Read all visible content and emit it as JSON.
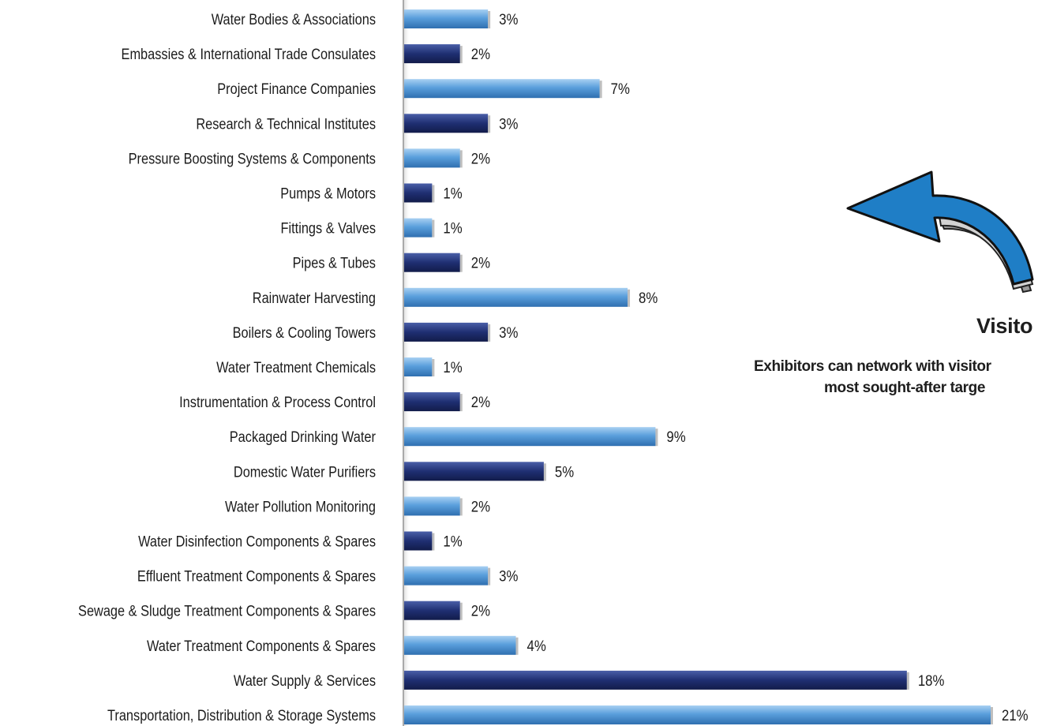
{
  "chart_data": {
    "type": "bar",
    "orientation": "horizontal",
    "categories": [
      "Water Bodies & Associations",
      "Embassies & International Trade Consulates",
      "Project Finance Companies",
      "Research & Technical Institutes",
      "Pressure Boosting Systems & Components",
      "Pumps & Motors",
      "Fittings & Valves",
      "Pipes & Tubes",
      "Rainwater Harvesting",
      "Boilers & Cooling Towers",
      "Water Treatment Chemicals",
      "Instrumentation & Process Control",
      "Packaged Drinking Water",
      "Domestic Water Purifiers",
      "Water Pollution Monitoring",
      "Water Disinfection Components & Spares",
      "Effluent Treatment Components & Spares",
      "Sewage & Sludge Treatment Components & Spares",
      "Water Treatment Components & Spares",
      "Water Supply & Services",
      "Transportation, Distribution & Storage Systems"
    ],
    "values": [
      3,
      2,
      7,
      3,
      2,
      1,
      1,
      2,
      8,
      3,
      1,
      2,
      9,
      5,
      2,
      1,
      3,
      2,
      4,
      18,
      21
    ],
    "value_labels": [
      "3%",
      "2%",
      "7%",
      "3%",
      "2%",
      "1%",
      "1%",
      "2%",
      "8%",
      "3%",
      "1%",
      "2%",
      "9%",
      "5%",
      "2%",
      "1%",
      "3%",
      "2%",
      "4%",
      "18%",
      "21%"
    ],
    "xlim": [
      0,
      21
    ],
    "grid": false,
    "legend": "none",
    "bar_colors_alternating": [
      "#4f93d4",
      "#1e2f6e"
    ]
  },
  "side_panel": {
    "heading": "Visito",
    "line1": "Exhibitors can network with visitor",
    "line2": "most sought-after targe"
  },
  "icons": {
    "arrow": "curved-arrow-icon"
  },
  "colors": {
    "bar_light": "#4f93d4",
    "bar_dark": "#1e2f6e",
    "arrow_fill": "#1f7ec6",
    "arrow_tail": "#c7c7c7"
  }
}
